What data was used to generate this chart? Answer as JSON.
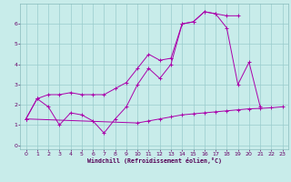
{
  "xlabel": "Windchill (Refroidissement éolien,°C)",
  "bg_color": "#c8ecea",
  "line_color": "#aa00aa",
  "grid_color": "#99cccc",
  "xlim": [
    -0.5,
    23.5
  ],
  "ylim": [
    -0.2,
    7.0
  ],
  "xticks": [
    0,
    1,
    2,
    3,
    4,
    5,
    6,
    7,
    8,
    9,
    10,
    11,
    12,
    13,
    14,
    15,
    16,
    17,
    18,
    19,
    20,
    21,
    22,
    23
  ],
  "yticks": [
    0,
    1,
    2,
    3,
    4,
    5,
    6
  ],
  "series1_x": [
    0,
    1,
    2,
    3,
    4,
    5,
    6,
    7,
    8,
    9,
    10,
    11,
    12,
    13,
    14,
    15,
    16,
    17,
    18,
    19,
    20,
    21
  ],
  "series1_y": [
    1.3,
    2.3,
    1.9,
    1.0,
    1.6,
    1.5,
    1.2,
    0.6,
    1.3,
    1.9,
    3.0,
    3.8,
    3.3,
    4.0,
    6.0,
    6.1,
    6.6,
    6.5,
    5.8,
    3.0,
    4.1,
    1.9
  ],
  "series2_x": [
    0,
    1,
    2,
    3,
    4,
    5,
    6,
    7,
    8,
    9,
    10,
    11,
    12,
    13,
    14,
    15,
    16,
    17,
    18,
    19
  ],
  "series2_y": [
    1.3,
    2.3,
    2.5,
    2.5,
    2.6,
    2.5,
    2.5,
    2.5,
    2.8,
    3.1,
    3.8,
    4.5,
    4.2,
    4.3,
    6.0,
    6.1,
    6.6,
    6.5,
    6.4,
    6.4
  ],
  "series3_x": [
    0,
    10,
    11,
    12,
    13,
    14,
    15,
    16,
    17,
    18,
    19,
    20,
    21,
    22,
    23
  ],
  "series3_y": [
    1.3,
    1.1,
    1.2,
    1.3,
    1.4,
    1.5,
    1.55,
    1.6,
    1.65,
    1.7,
    1.75,
    1.8,
    1.82,
    1.85,
    1.9
  ]
}
